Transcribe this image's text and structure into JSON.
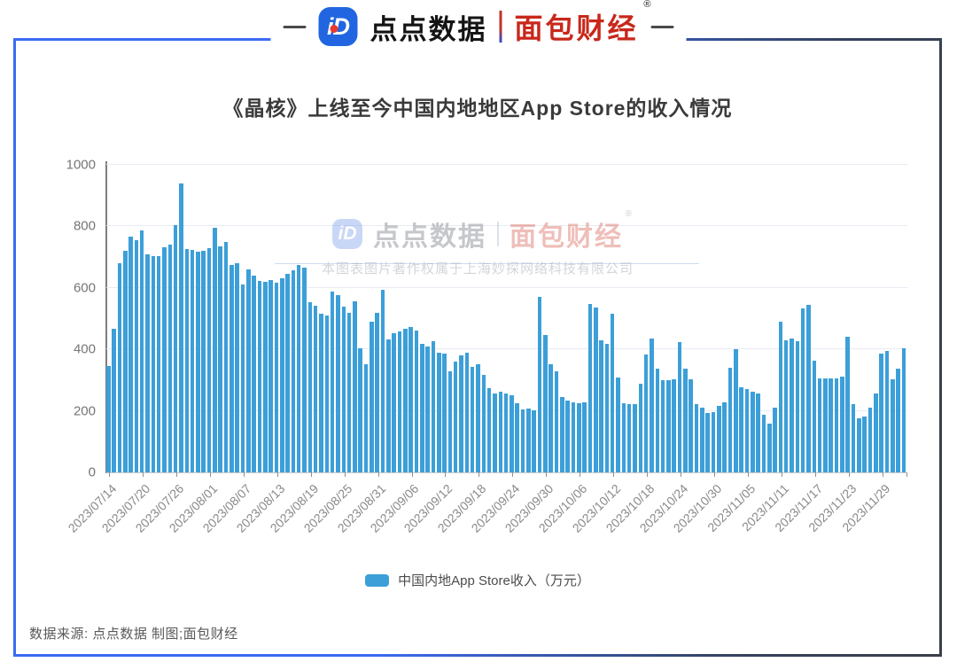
{
  "header": {
    "brand_left_logo": "iD",
    "brand_left": "点点数据",
    "brand_right": "面包财经",
    "registered_mark": "®"
  },
  "title": "《晶核》上线至今中国内地地区App Store的收入情况",
  "watermark": {
    "brand_left_logo": "iD",
    "brand_left": "点点数据",
    "brand_right": "面包财经",
    "registered_mark": "®",
    "copyright_line": "本图表图片著作权属于上海妙探网络科技有限公司"
  },
  "legend": {
    "label": "中国内地App Store收入（万元）"
  },
  "footer": {
    "source": "数据来源: 点点数据 制图;面包财经"
  },
  "colors": {
    "bar": "#3c9fd8",
    "frame_blue": "#3a6cf2",
    "brand_red": "#c8281b",
    "brand_blue": "#2166e0"
  },
  "chart_data": {
    "type": "bar",
    "title": "《晶核》上线至今中国内地地区App Store的收入情况",
    "series_name": "中国内地App Store收入（万元）",
    "xlabel": "",
    "ylabel": "收入（万元）",
    "ylim": [
      0,
      1000
    ],
    "y_ticks": [
      0,
      200,
      400,
      600,
      800,
      1000
    ],
    "grid": true,
    "legend_position": "bottom",
    "x_start_date": "2023/07/14",
    "x_interval": "daily",
    "x_tick_interval_days": 6,
    "x_tick_labels": [
      "2023/07/14",
      "2023/07/20",
      "2023/07/26",
      "2023/08/01",
      "2023/08/07",
      "2023/08/13",
      "2023/08/19",
      "2023/08/25",
      "2023/08/31",
      "2023/09/06",
      "2023/09/12",
      "2023/09/18",
      "2023/09/24",
      "2023/09/30",
      "2023/10/06",
      "2023/10/12",
      "2023/10/18",
      "2023/10/24",
      "2023/10/30",
      "2023/11/05",
      "2023/11/11",
      "2023/11/17",
      "2023/11/23",
      "2023/11/29"
    ],
    "values": [
      345,
      467,
      681,
      721,
      766,
      755,
      787,
      709,
      702,
      704,
      731,
      741,
      805,
      940,
      726,
      724,
      717,
      721,
      728,
      794,
      736,
      750,
      674,
      680,
      612,
      659,
      640,
      623,
      620,
      625,
      617,
      632,
      647,
      656,
      673,
      667,
      553,
      541,
      515,
      510,
      589,
      577,
      540,
      520,
      555,
      404,
      352,
      491,
      518,
      595,
      433,
      452,
      459,
      466,
      472,
      462,
      419,
      409,
      427,
      388,
      385,
      328,
      361,
      380,
      390,
      342,
      352,
      318,
      273,
      256,
      263,
      257,
      251,
      225,
      205,
      207,
      203,
      570,
      448,
      352,
      328,
      246,
      233,
      227,
      225,
      229,
      547,
      537,
      428,
      418,
      515,
      309,
      226,
      223,
      221,
      288,
      384,
      435,
      336,
      300,
      300,
      303,
      425,
      338,
      302,
      221,
      211,
      193,
      196,
      217,
      227,
      339,
      400,
      277,
      270,
      263,
      257,
      186,
      159,
      209,
      491,
      430,
      434,
      426,
      533,
      545,
      363,
      305,
      305,
      305,
      305,
      310,
      440,
      221,
      176,
      182,
      210,
      256,
      385,
      395,
      302,
      337,
      404
    ]
  }
}
